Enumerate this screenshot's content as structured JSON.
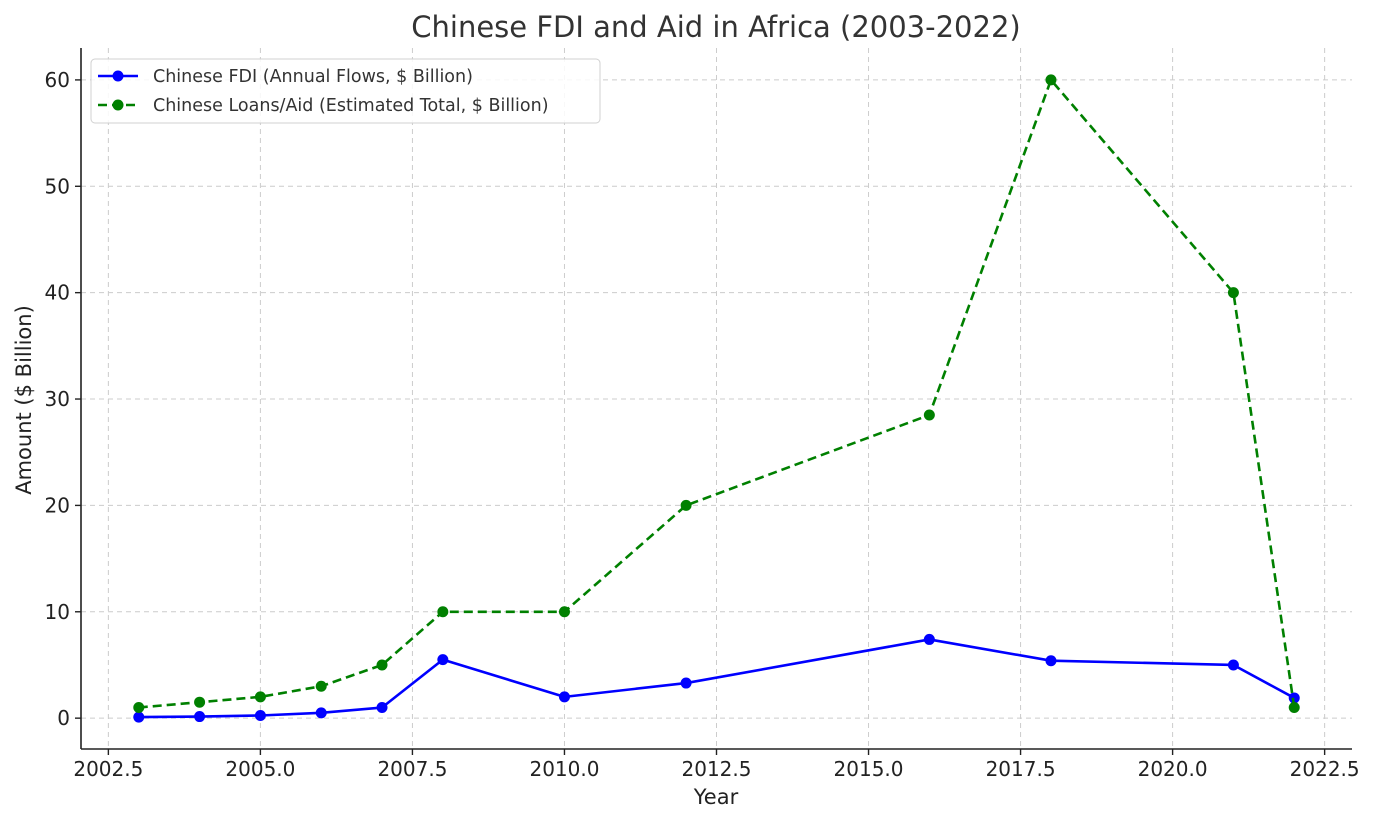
{
  "chart_data": {
    "type": "line",
    "title": "Chinese FDI and Aid in Africa (2003-2022)",
    "xlabel": "Year",
    "ylabel": "Amount ($ Billion)",
    "xlim": [
      2002.05,
      2022.95
    ],
    "ylim": [
      -2.9,
      63
    ],
    "x_ticks": [
      2002.5,
      2005.0,
      2007.5,
      2010.0,
      2012.5,
      2015.0,
      2017.5,
      2020.0,
      2022.5
    ],
    "x_tick_labels": [
      "2002.5",
      "2005.0",
      "2007.5",
      "2010.0",
      "2012.5",
      "2015.0",
      "2017.5",
      "2020.0",
      "2022.5"
    ],
    "y_ticks": [
      0,
      10,
      20,
      30,
      40,
      50,
      60
    ],
    "y_tick_labels": [
      "0",
      "10",
      "20",
      "30",
      "40",
      "50",
      "60"
    ],
    "grid": true,
    "legend_position": "top-left",
    "series": [
      {
        "name": "Chinese FDI (Annual Flows, $ Billion)",
        "color": "#0000ff",
        "line_style": "solid",
        "marker": "circle",
        "x": [
          2003,
          2004,
          2005,
          2006,
          2007,
          2008,
          2010,
          2012,
          2016,
          2018,
          2021,
          2022
        ],
        "y": [
          0.1,
          0.15,
          0.25,
          0.5,
          1.0,
          5.5,
          2.0,
          3.3,
          7.4,
          5.4,
          5.0,
          1.9
        ]
      },
      {
        "name": "Chinese Loans/Aid (Estimated Total, $ Billion)",
        "color": "#008000",
        "line_style": "dashed",
        "marker": "circle",
        "x": [
          2003,
          2004,
          2005,
          2006,
          2007,
          2008,
          2010,
          2012,
          2016,
          2018,
          2021,
          2022
        ],
        "y": [
          1.0,
          1.5,
          2.0,
          3.0,
          5.0,
          10.0,
          10.0,
          20.0,
          28.5,
          60.0,
          40.0,
          1.0
        ]
      }
    ]
  }
}
